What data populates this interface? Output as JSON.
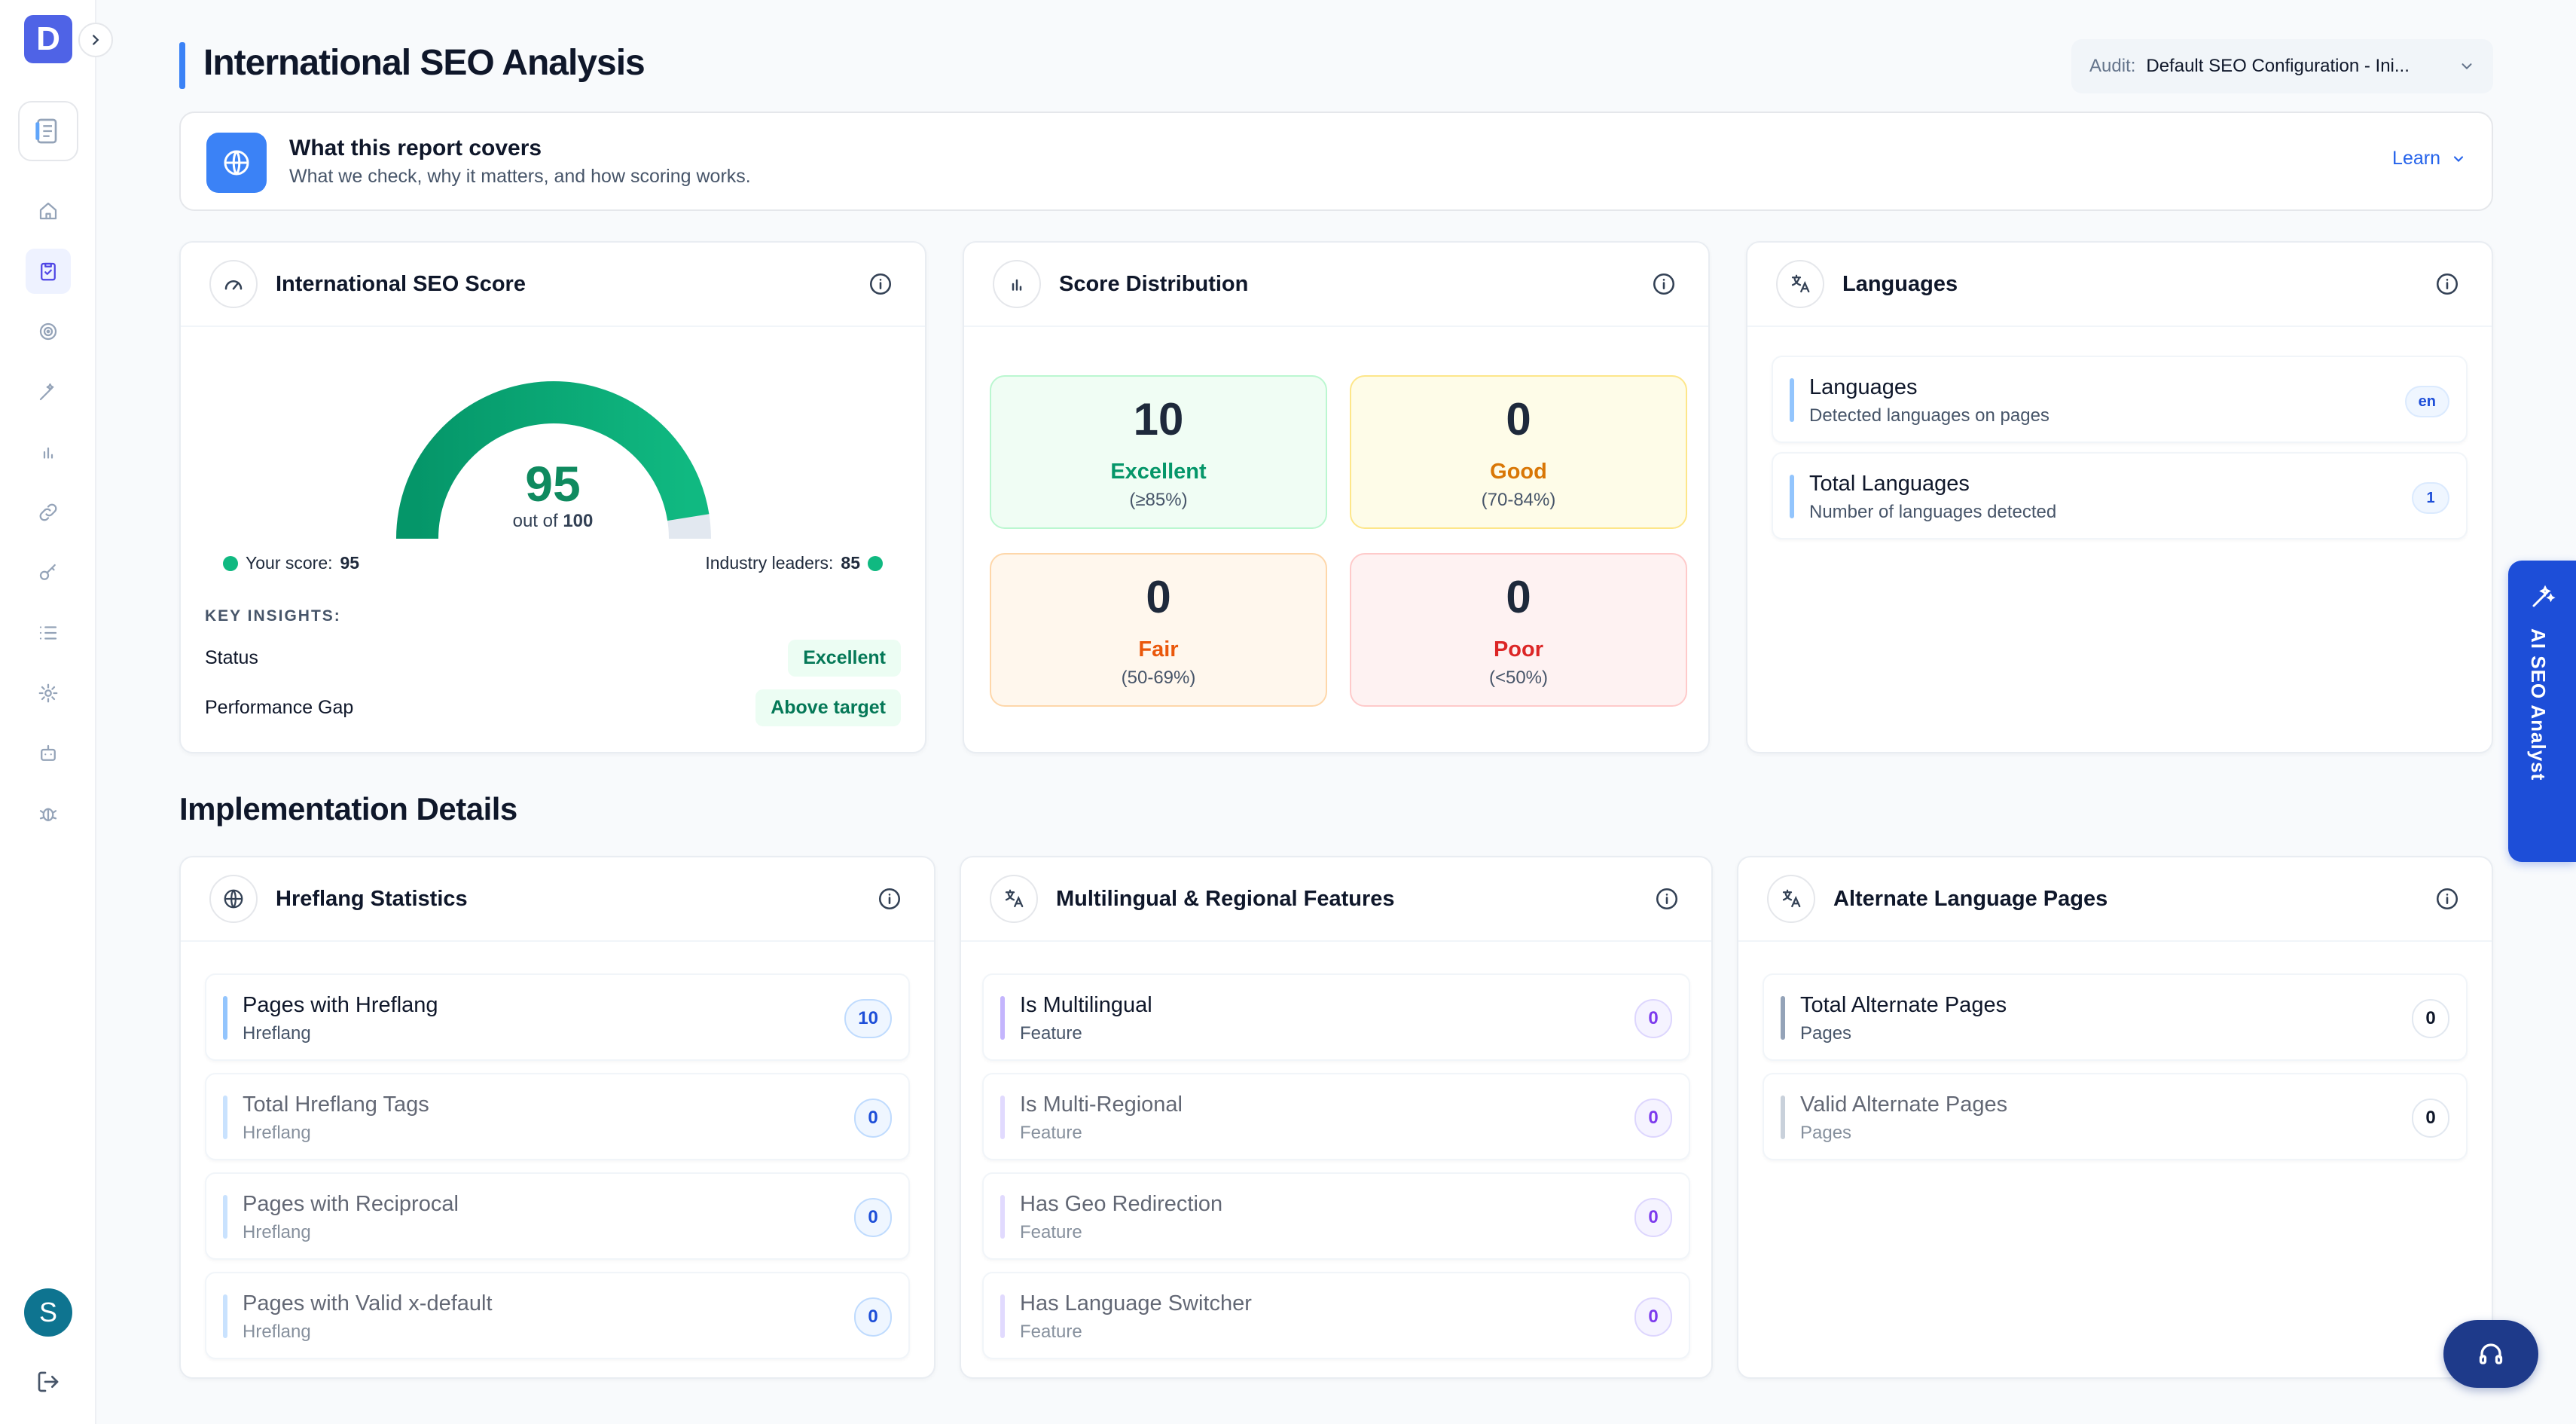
{
  "app": {
    "logo_letter": "D",
    "avatar_letter": "S"
  },
  "sidebar": {
    "items": [
      {
        "name": "home-icon",
        "active": false
      },
      {
        "name": "clipboard-check-icon",
        "active": true
      },
      {
        "name": "target-icon",
        "active": false
      },
      {
        "name": "magic-wand-icon",
        "active": false
      },
      {
        "name": "bar-chart-icon",
        "active": false
      },
      {
        "name": "link-icon",
        "active": false
      },
      {
        "name": "key-icon",
        "active": false
      },
      {
        "name": "list-icon",
        "active": false
      },
      {
        "name": "gear-icon",
        "active": false
      },
      {
        "name": "robot-icon",
        "active": false
      },
      {
        "name": "bug-icon",
        "active": false
      }
    ]
  },
  "header": {
    "title": "International SEO Analysis",
    "audit_label": "Audit:",
    "audit_value": "Default SEO Configuration - Ini..."
  },
  "info_banner": {
    "title": "What this report covers",
    "subtitle": "What we check, why it matters, and how scoring works.",
    "learn_label": "Learn"
  },
  "score_card": {
    "title": "International SEO Score",
    "score": "95",
    "score_fraction": 0.95,
    "out_of_prefix": "out of",
    "out_of_value": "100",
    "your_score_label": "Your score:",
    "your_score_value": "95",
    "leaders_label": "Industry leaders:",
    "leaders_value": "85",
    "insights_label": "KEY INSIGHTS:",
    "insights": [
      {
        "label": "Status",
        "value": "Excellent"
      },
      {
        "label": "Performance Gap",
        "value": "Above target"
      }
    ]
  },
  "distribution_card": {
    "title": "Score Distribution",
    "tiles": [
      {
        "count": "10",
        "label": "Excellent",
        "range": "(≥85%)",
        "color": "#059669"
      },
      {
        "count": "0",
        "label": "Good",
        "range": "(70-84%)",
        "color": "#d97706"
      },
      {
        "count": "0",
        "label": "Fair",
        "range": "(50-69%)",
        "color": "#ea580c"
      },
      {
        "count": "0",
        "label": "Poor",
        "range": "(<50%)",
        "color": "#dc2626"
      }
    ]
  },
  "languages_card": {
    "title": "Languages",
    "rows": [
      {
        "title": "Languages",
        "subtitle": "Detected languages on pages",
        "badge": "en"
      },
      {
        "title": "Total Languages",
        "subtitle": "Number of languages detected",
        "badge": "1"
      }
    ]
  },
  "implementation": {
    "section_title": "Implementation Details",
    "hreflang": {
      "title": "Hreflang Statistics",
      "rows": [
        {
          "title": "Pages with Hreflang",
          "subtitle": "Hreflang",
          "badge": "10"
        },
        {
          "title": "Total Hreflang Tags",
          "subtitle": "Hreflang",
          "badge": "0"
        },
        {
          "title": "Pages with Reciprocal",
          "subtitle": "Hreflang",
          "badge": "0"
        },
        {
          "title": "Pages with Valid x-default",
          "subtitle": "Hreflang",
          "badge": "0"
        }
      ]
    },
    "multilingual": {
      "title": "Multilingual & Regional Features",
      "rows": [
        {
          "title": "Is Multilingual",
          "subtitle": "Feature",
          "badge": "0"
        },
        {
          "title": "Is Multi-Regional",
          "subtitle": "Feature",
          "badge": "0"
        },
        {
          "title": "Has Geo Redirection",
          "subtitle": "Feature",
          "badge": "0"
        },
        {
          "title": "Has Language Switcher",
          "subtitle": "Feature",
          "badge": "0"
        }
      ]
    },
    "alternate": {
      "title": "Alternate Language Pages",
      "rows": [
        {
          "title": "Total Alternate Pages",
          "subtitle": "Pages",
          "badge": "0"
        },
        {
          "title": "Valid Alternate Pages",
          "subtitle": "Pages",
          "badge": "0"
        }
      ]
    }
  },
  "ai_analyst": {
    "label": "AI SEO Analyst"
  },
  "colors": {
    "accent": "#3b82f6",
    "brand": "#4f63e6",
    "success": "#10b981",
    "gauge_track": "#e2e8f0"
  }
}
